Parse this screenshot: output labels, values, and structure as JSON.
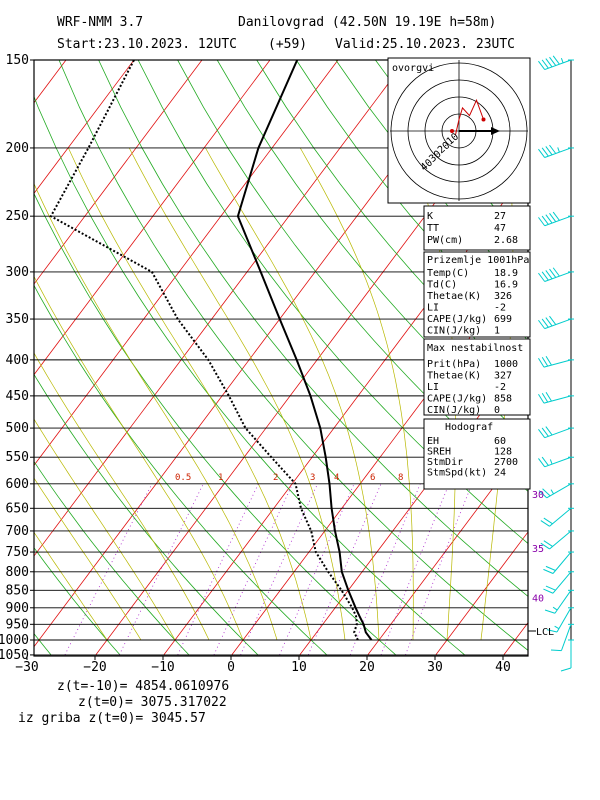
{
  "header": {
    "model": "WRF-NMM 3.7",
    "location": "Danilovgrad (42.50N 19.19E  h=58m)",
    "start": "Start:23.10.2023.  12UTC",
    "offset": "(+59)",
    "valid": "Valid:25.10.2023.  23UTC"
  },
  "hodograph": {
    "label": "ovorgvi",
    "ring_labels": [
      "10",
      "20",
      "30",
      "40"
    ],
    "trace": [
      [
        -1,
        -0.5
      ],
      [
        0,
        1.5
      ],
      [
        1,
        3
      ],
      [
        3,
        2
      ],
      [
        5,
        4
      ],
      [
        7,
        1.5
      ]
    ]
  },
  "indices": [
    {
      "label": "K",
      "value": "27"
    },
    {
      "label": "TT",
      "value": "47"
    },
    {
      "label": "PW(cm)",
      "value": "2.68"
    }
  ],
  "surface_parcel": {
    "title": "Prizemlje 1001hPa",
    "rows": [
      {
        "label": "Temp(C)",
        "value": "18.9"
      },
      {
        "label": "Td(C)",
        "value": "16.9"
      },
      {
        "label": "Thetae(K)",
        "value": "326"
      },
      {
        "label": "LI",
        "value": "-2"
      },
      {
        "label": "CAPE(J/kg)",
        "value": "699"
      },
      {
        "label": "CIN(J/kg)",
        "value": "1"
      }
    ]
  },
  "max_instability": {
    "title": "Max nestabilnost",
    "rows": [
      {
        "label": "Prit(hPa)",
        "value": "1000"
      },
      {
        "label": "Thetae(K)",
        "value": "327"
      },
      {
        "label": "LI",
        "value": "-2"
      },
      {
        "label": "CAPE(J/kg)",
        "value": "858"
      },
      {
        "label": "CIN(J/kg)",
        "value": "0"
      }
    ]
  },
  "hodograf": {
    "title": "Hodograf",
    "rows": [
      {
        "label": "EH",
        "value": "60"
      },
      {
        "label": "SREH",
        "value": "128"
      },
      {
        "label": "StmDir",
        "value": "2700"
      },
      {
        "label": "StmSpd(kt)",
        "value": "24"
      }
    ]
  },
  "lcl_label": "LCL",
  "wind_speed_labels": [
    {
      "p": 620,
      "text": "30"
    },
    {
      "p": 740,
      "text": "35"
    },
    {
      "p": 870,
      "text": "40"
    }
  ],
  "footer": {
    "line1": "z(t=-10)= 4854.0610976",
    "line2": "z(t=0)=  3075.317022",
    "line3": "iz griba  z(t=0)= 3045.57"
  },
  "chart_data": {
    "type": "line",
    "title": "",
    "subtitle": "",
    "xlabel": "",
    "ylabel": "",
    "xlim": [
      -30,
      40
    ],
    "ylim": [
      1050,
      150
    ],
    "x_ticks": [
      "−30",
      "−20",
      "−10",
      "0",
      "10",
      "20",
      "30",
      "40"
    ],
    "y_ticks": [
      "150",
      "200",
      "250",
      "300",
      "350",
      "400",
      "450",
      "500",
      "550",
      "600",
      "650",
      "700",
      "750",
      "800",
      "850",
      "900",
      "950",
      "1000",
      "1050"
    ],
    "mixing_ratio_labels": [
      "0.5",
      "1",
      "2",
      "3",
      "4",
      "6",
      "8"
    ],
    "series": [
      {
        "name": "",
        "color": "#000000",
        "style": "solid",
        "points": [
          {
            "p": 1000,
            "t": 18.9
          },
          {
            "p": 975,
            "t": 17.2
          },
          {
            "p": 950,
            "t": 16.0
          },
          {
            "p": 925,
            "t": 14.5
          },
          {
            "p": 900,
            "t": 13.0
          },
          {
            "p": 850,
            "t": 10.0
          },
          {
            "p": 800,
            "t": 7.0
          },
          {
            "p": 750,
            "t": 4.5
          },
          {
            "p": 700,
            "t": 1.5
          },
          {
            "p": 650,
            "t": -1.5
          },
          {
            "p": 600,
            "t": -4.5
          },
          {
            "p": 550,
            "t": -8.0
          },
          {
            "p": 500,
            "t": -12.0
          },
          {
            "p": 450,
            "t": -17.0
          },
          {
            "p": 400,
            "t": -23.0
          },
          {
            "p": 350,
            "t": -30.0
          },
          {
            "p": 300,
            "t": -38.0
          },
          {
            "p": 250,
            "t": -47.5
          },
          {
            "p": 200,
            "t": -52.0
          },
          {
            "p": 150,
            "t": -56.0
          }
        ]
      },
      {
        "name": "",
        "color": "#000000",
        "style": "dotted",
        "points": [
          {
            "p": 1000,
            "t": 16.9
          },
          {
            "p": 975,
            "t": 15.5
          },
          {
            "p": 950,
            "t": 15.0
          },
          {
            "p": 925,
            "t": 14.0
          },
          {
            "p": 900,
            "t": 12.5
          },
          {
            "p": 850,
            "t": 9.0
          },
          {
            "p": 800,
            "t": 5.0
          },
          {
            "p": 750,
            "t": 1.0
          },
          {
            "p": 700,
            "t": -2.0
          },
          {
            "p": 650,
            "t": -6.0
          },
          {
            "p": 600,
            "t": -9.5
          },
          {
            "p": 550,
            "t": -16.0
          },
          {
            "p": 500,
            "t": -23.0
          },
          {
            "p": 450,
            "t": -29.0
          },
          {
            "p": 400,
            "t": -36.0
          },
          {
            "p": 350,
            "t": -45.0
          },
          {
            "p": 300,
            "t": -54.0
          },
          {
            "p": 250,
            "t": -75.0
          },
          {
            "p": 200,
            "t": -77.0
          },
          {
            "p": 150,
            "t": -80.0
          }
        ]
      }
    ],
    "winds": [
      {
        "p": 150,
        "dir": 250,
        "spd": 55
      },
      {
        "p": 200,
        "dir": 250,
        "spd": 45
      },
      {
        "p": 250,
        "dir": 250,
        "spd": 50
      },
      {
        "p": 300,
        "dir": 250,
        "spd": 50
      },
      {
        "p": 350,
        "dir": 250,
        "spd": 40
      },
      {
        "p": 400,
        "dir": 255,
        "spd": 30
      },
      {
        "p": 450,
        "dir": 255,
        "spd": 30
      },
      {
        "p": 500,
        "dir": 250,
        "spd": 30
      },
      {
        "p": 550,
        "dir": 250,
        "spd": 25
      },
      {
        "p": 600,
        "dir": 240,
        "spd": 25
      },
      {
        "p": 650,
        "dir": 230,
        "spd": 20
      },
      {
        "p": 700,
        "dir": 230,
        "spd": 20
      },
      {
        "p": 750,
        "dir": 220,
        "spd": 20
      },
      {
        "p": 800,
        "dir": 220,
        "spd": 20
      },
      {
        "p": 850,
        "dir": 215,
        "spd": 15
      },
      {
        "p": 900,
        "dir": 210,
        "spd": 15
      },
      {
        "p": 950,
        "dir": 200,
        "spd": 10
      },
      {
        "p": 1000,
        "dir": 180,
        "spd": 10
      }
    ]
  }
}
